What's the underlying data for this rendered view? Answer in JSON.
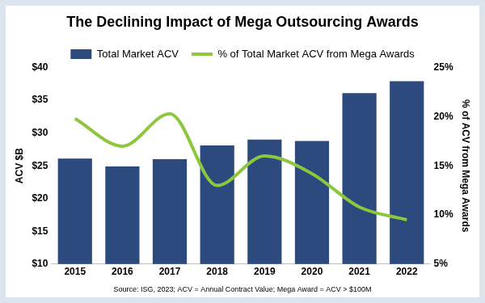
{
  "chart_data": {
    "type": "bar",
    "title": "The Declining Impact of Mega Outsourcing Awards",
    "source": "Source: ISG, 2023; ACV = Annual Contract Value; Mega Award = ACV > $100M",
    "categories": [
      "2015",
      "2016",
      "2017",
      "2018",
      "2019",
      "2020",
      "2021",
      "2022"
    ],
    "series": [
      {
        "name": "Total Market ACV",
        "type": "bar",
        "color": "#2c4a7e",
        "values": [
          26.1,
          24.9,
          26.0,
          28.1,
          29.0,
          28.8,
          36.1,
          37.9
        ]
      },
      {
        "name": "% of Total Market ACV from Mega Awards",
        "type": "line",
        "axis": "y2",
        "color": "#8dc63f",
        "values": [
          19.8,
          17.0,
          20.3,
          13.0,
          16.0,
          14.2,
          10.8,
          9.5
        ]
      }
    ],
    "y_label": "ACV $B",
    "y2_label": "% of ACV from Mega Awards",
    "ylim": [
      10,
      40
    ],
    "yticks": [
      {
        "value": 10,
        "label": "$10"
      },
      {
        "value": 15,
        "label": "$15"
      },
      {
        "value": 20,
        "label": "$20"
      },
      {
        "value": 25,
        "label": "$25"
      },
      {
        "value": 30,
        "label": "$30"
      },
      {
        "value": 35,
        "label": "$35"
      },
      {
        "value": 40,
        "label": "$40"
      }
    ],
    "y2lim": [
      5,
      25
    ],
    "y2ticks": [
      {
        "value": 5,
        "label": "5%"
      },
      {
        "value": 10,
        "label": "10%"
      },
      {
        "value": 15,
        "label": "15%"
      },
      {
        "value": 20,
        "label": "20%"
      },
      {
        "value": 25,
        "label": "25%"
      }
    ],
    "grid": false,
    "legend": "top"
  }
}
